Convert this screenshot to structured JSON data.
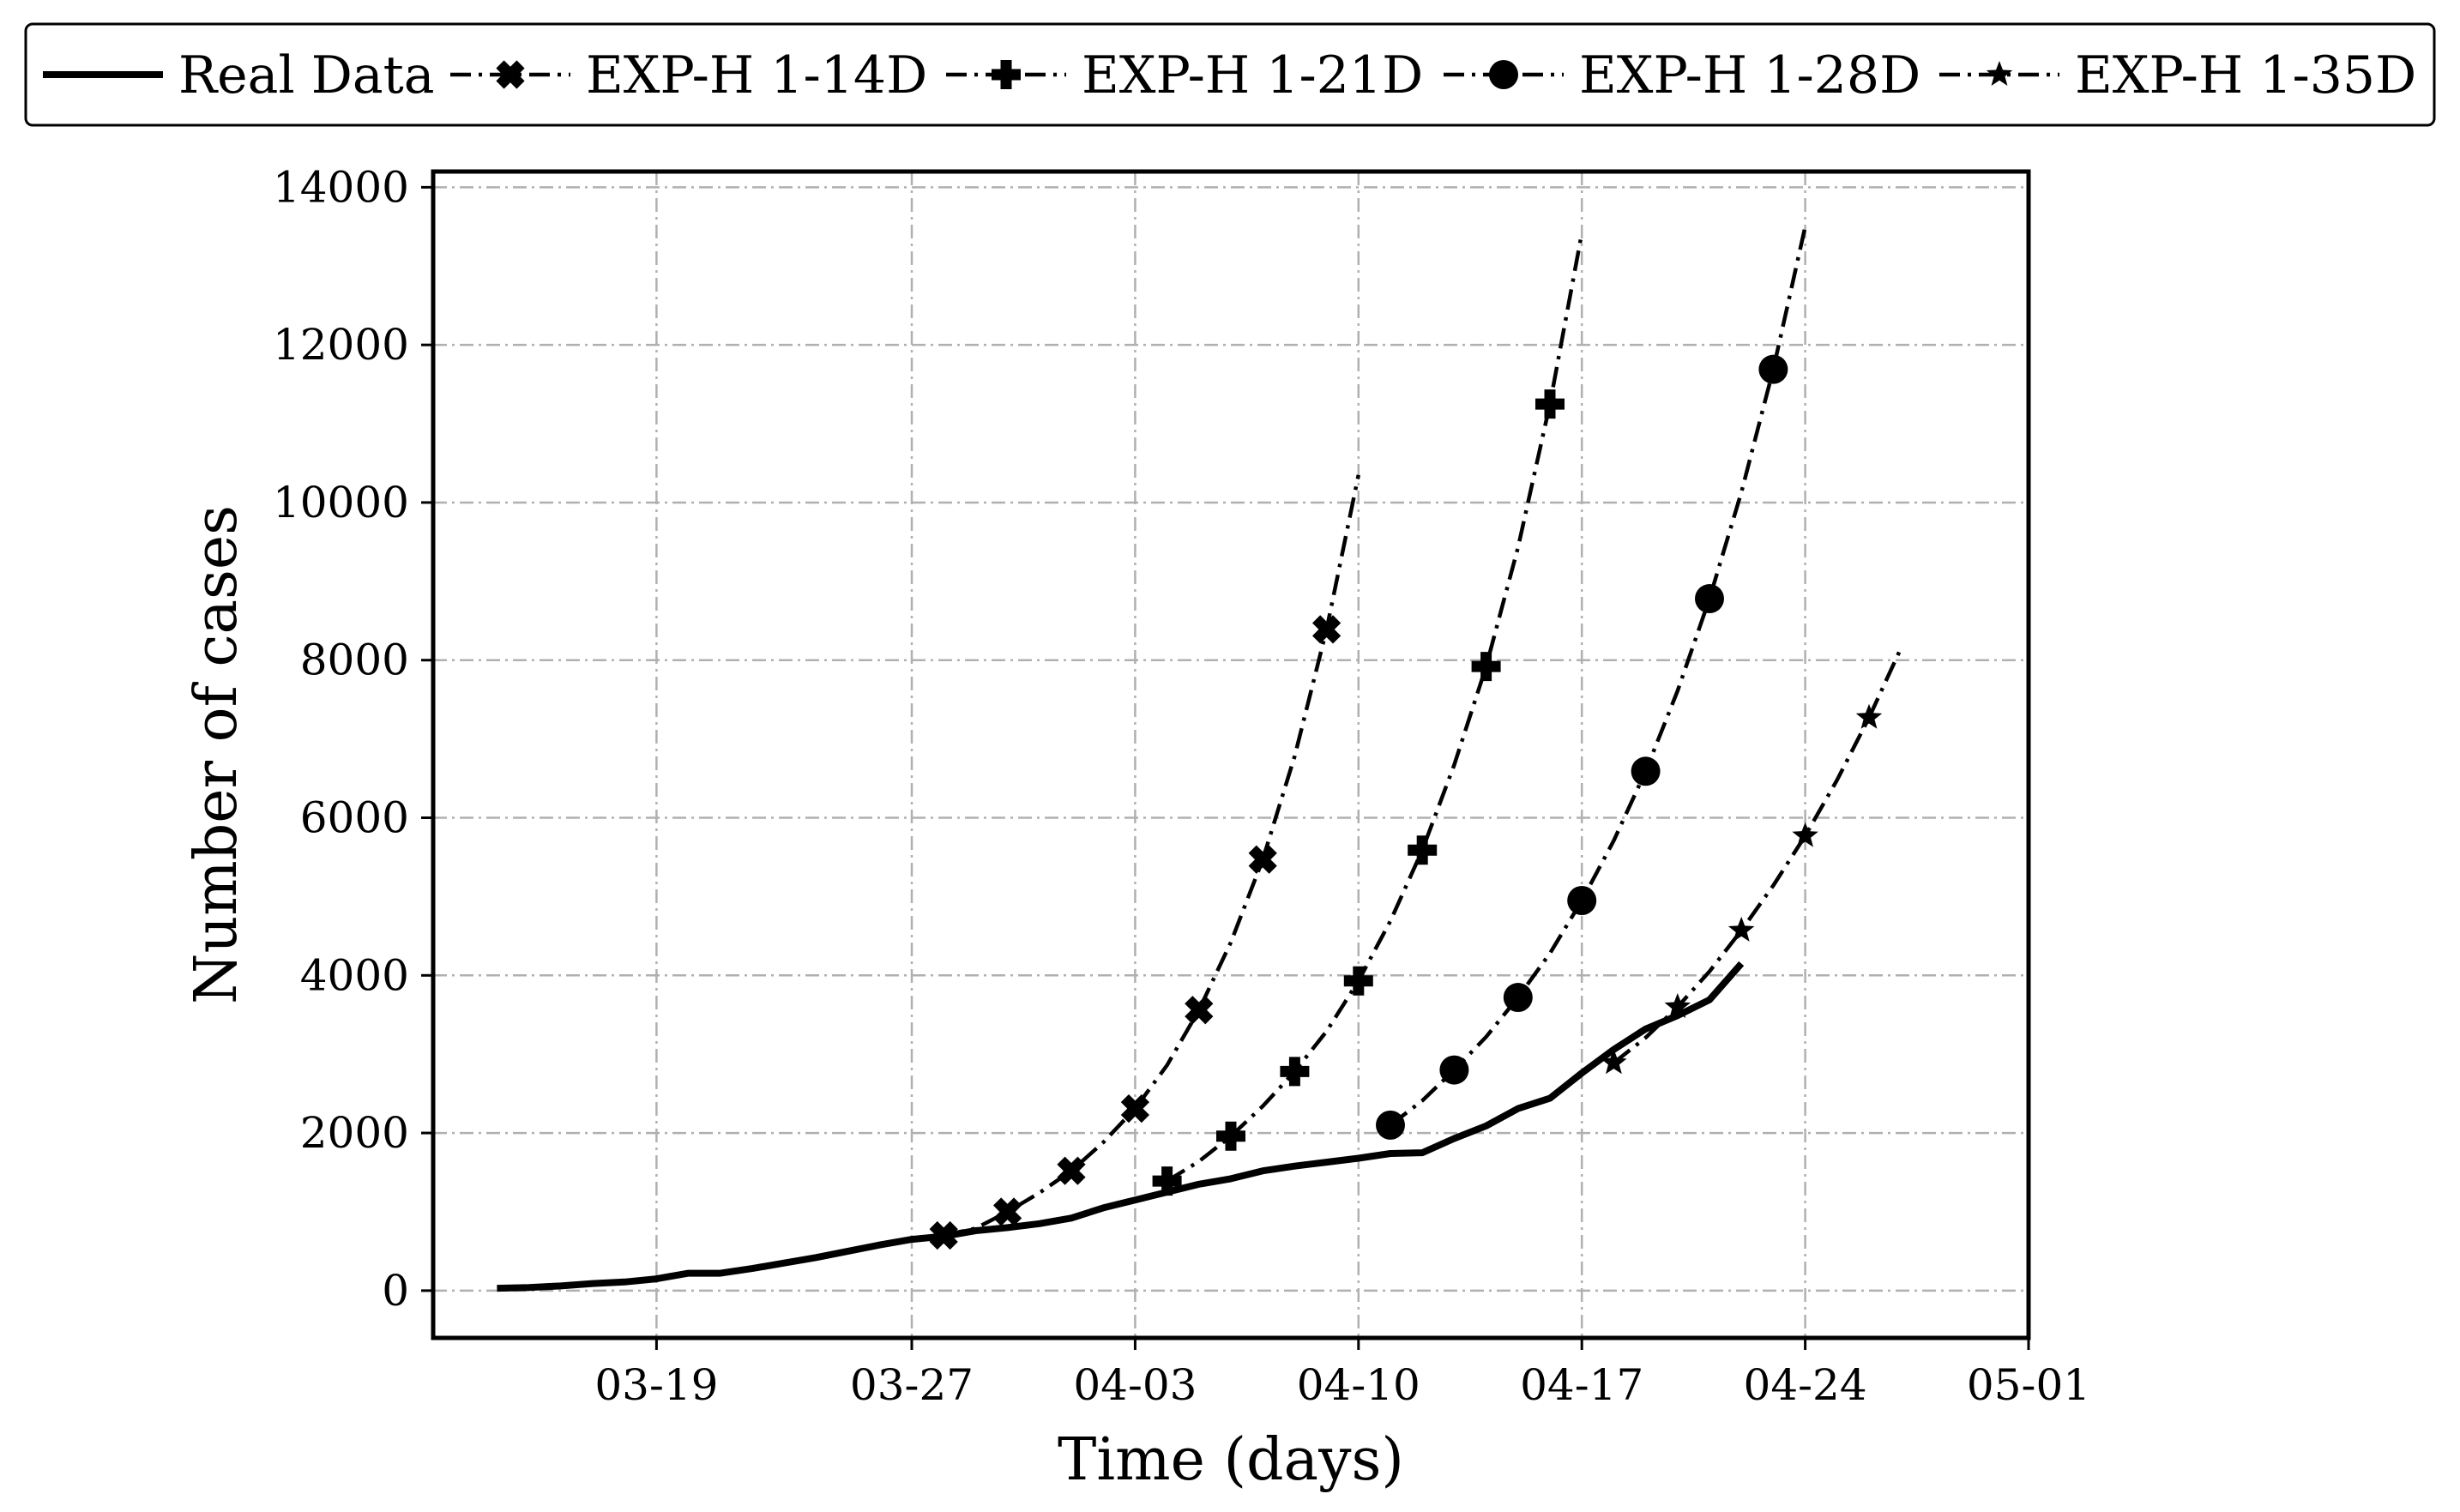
{
  "chart_data": {
    "type": "line",
    "title": "",
    "xlabel": "Time (days)",
    "ylabel": "Number of cases",
    "xlim": [
      "2020-03-12",
      "2020-05-01"
    ],
    "ylim": [
      -600,
      14200
    ],
    "x_ticks": [
      {
        "date": "2020-03-19",
        "label": "03-19"
      },
      {
        "date": "2020-03-27",
        "label": "03-27"
      },
      {
        "date": "2020-04-03",
        "label": "04-03"
      },
      {
        "date": "2020-04-10",
        "label": "04-10"
      },
      {
        "date": "2020-04-17",
        "label": "04-17"
      },
      {
        "date": "2020-04-24",
        "label": "04-24"
      },
      {
        "date": "2020-05-01",
        "label": "05-01"
      }
    ],
    "y_ticks": [
      {
        "value": 0,
        "label": "0"
      },
      {
        "value": 2000,
        "label": "2000"
      },
      {
        "value": 4000,
        "label": "4000"
      },
      {
        "value": 6000,
        "label": "6000"
      },
      {
        "value": 8000,
        "label": "8000"
      },
      {
        "value": 10000,
        "label": "10000"
      },
      {
        "value": 12000,
        "label": "12000"
      },
      {
        "value": 14000,
        "label": "14000"
      }
    ],
    "grid": true,
    "legend_position": "top",
    "series": [
      {
        "name": "Real Data",
        "style": "solid",
        "marker": "none",
        "x": [
          "2020-03-14",
          "2020-03-15",
          "2020-03-16",
          "2020-03-17",
          "2020-03-18",
          "2020-03-19",
          "2020-03-20",
          "2020-03-21",
          "2020-03-22",
          "2020-03-23",
          "2020-03-24",
          "2020-03-25",
          "2020-03-26",
          "2020-03-27",
          "2020-03-28",
          "2020-03-29",
          "2020-03-30",
          "2020-03-31",
          "2020-04-01",
          "2020-04-02",
          "2020-04-03",
          "2020-04-04",
          "2020-04-05",
          "2020-04-06",
          "2020-04-07",
          "2020-04-08",
          "2020-04-09",
          "2020-04-10",
          "2020-04-11",
          "2020-04-12",
          "2020-04-13",
          "2020-04-14",
          "2020-04-15",
          "2020-04-16",
          "2020-04-17",
          "2020-04-18",
          "2020-04-19",
          "2020-04-20",
          "2020-04-21",
          "2020-04-22"
        ],
        "y": [
          30,
          40,
          60,
          90,
          110,
          150,
          220,
          220,
          280,
          350,
          420,
          500,
          580,
          650,
          690,
          760,
          800,
          850,
          920,
          1050,
          1150,
          1250,
          1350,
          1420,
          1520,
          1580,
          1630,
          1680,
          1740,
          1750,
          1930,
          2090,
          2310,
          2440,
          2760,
          3060,
          3320,
          3490,
          3690,
          4150
        ]
      },
      {
        "name": "EXP-H 1-14D",
        "style": "dashdot",
        "marker": "x",
        "x": [
          "2020-03-28",
          "2020-03-29",
          "2020-03-30",
          "2020-03-31",
          "2020-04-01",
          "2020-04-02",
          "2020-04-03",
          "2020-04-04",
          "2020-04-05",
          "2020-04-06",
          "2020-04-07",
          "2020-04-08",
          "2020-04-09",
          "2020-04-10"
        ],
        "y": [
          700,
          790,
          1000,
          1240,
          1520,
          1880,
          2310,
          2860,
          3560,
          4420,
          5470,
          6780,
          8390,
          10350
        ],
        "markers_at": [
          "2020-03-28",
          "2020-03-30",
          "2020-04-01",
          "2020-04-03",
          "2020-04-05",
          "2020-04-07",
          "2020-04-09"
        ]
      },
      {
        "name": "EXP-H 1-21D",
        "style": "dashdot",
        "marker": "plus",
        "x": [
          "2020-04-04",
          "2020-04-05",
          "2020-04-06",
          "2020-04-07",
          "2020-04-08",
          "2020-04-09",
          "2020-04-10",
          "2020-04-11",
          "2020-04-12",
          "2020-04-13",
          "2020-04-14",
          "2020-04-15",
          "2020-04-16",
          "2020-04-17"
        ],
        "y": [
          1390,
          1640,
          1960,
          2340,
          2780,
          3290,
          3930,
          4690,
          5590,
          6670,
          7920,
          9430,
          11250,
          13420
        ],
        "markers_at": [
          "2020-04-04",
          "2020-04-06",
          "2020-04-08",
          "2020-04-10",
          "2020-04-12",
          "2020-04-14",
          "2020-04-16"
        ]
      },
      {
        "name": "EXP-H 1-28D",
        "style": "dashdot",
        "marker": "circle",
        "x": [
          "2020-04-11",
          "2020-04-12",
          "2020-04-13",
          "2020-04-14",
          "2020-04-15",
          "2020-04-16",
          "2020-04-17",
          "2020-04-18",
          "2020-04-19",
          "2020-04-20",
          "2020-04-21",
          "2020-04-22",
          "2020-04-23",
          "2020-04-24"
        ],
        "y": [
          2100,
          2410,
          2800,
          3220,
          3720,
          4280,
          4950,
          5710,
          6590,
          7610,
          8780,
          10130,
          11690,
          13500
        ],
        "markers_at": [
          "2020-04-11",
          "2020-04-13",
          "2020-04-15",
          "2020-04-17",
          "2020-04-19",
          "2020-04-21",
          "2020-04-23"
        ]
      },
      {
        "name": "EXP-H 1-35D",
        "style": "dashdot",
        "marker": "star",
        "x": [
          "2020-04-18",
          "2020-04-19",
          "2020-04-20",
          "2020-04-21",
          "2020-04-22",
          "2020-04-23",
          "2020-04-24",
          "2020-04-25",
          "2020-04-26",
          "2020-04-27"
        ],
        "y": [
          2890,
          3210,
          3600,
          4050,
          4570,
          5140,
          5770,
          6480,
          7270,
          8150
        ],
        "markers_at": [
          "2020-04-18",
          "2020-04-20",
          "2020-04-22",
          "2020-04-24",
          "2020-04-26"
        ]
      }
    ]
  }
}
